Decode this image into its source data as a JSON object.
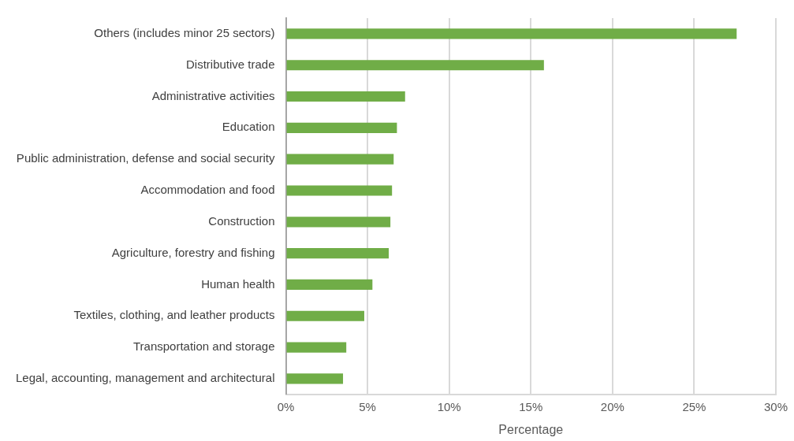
{
  "chart_data": {
    "type": "bar",
    "orientation": "horizontal",
    "xlabel": "Percentage",
    "categories": [
      "Others (includes minor 25 sectors)",
      "Distributive trade",
      "Administrative activities",
      "Education",
      "Public administration, defense and social security",
      "Accommodation and food",
      "Construction",
      "Agriculture, forestry and fishing",
      "Human health",
      "Textiles, clothing, and leather products",
      "Transportation and storage",
      "Legal, accounting, management and architectural"
    ],
    "values": [
      27.6,
      15.8,
      7.3,
      6.8,
      6.6,
      6.5,
      6.4,
      6.3,
      5.3,
      4.8,
      3.7,
      3.5
    ],
    "color": "#70ad47",
    "xlim": [
      0,
      30
    ],
    "xticks": [
      {
        "value": 0,
        "label": "0%"
      },
      {
        "value": 5,
        "label": "5%"
      },
      {
        "value": 10,
        "label": "10%"
      },
      {
        "value": 15,
        "label": "15%"
      },
      {
        "value": 20,
        "label": "20%"
      },
      {
        "value": 25,
        "label": "25%"
      },
      {
        "value": 30,
        "label": "30%"
      }
    ],
    "grid": "x",
    "legend": false
  }
}
